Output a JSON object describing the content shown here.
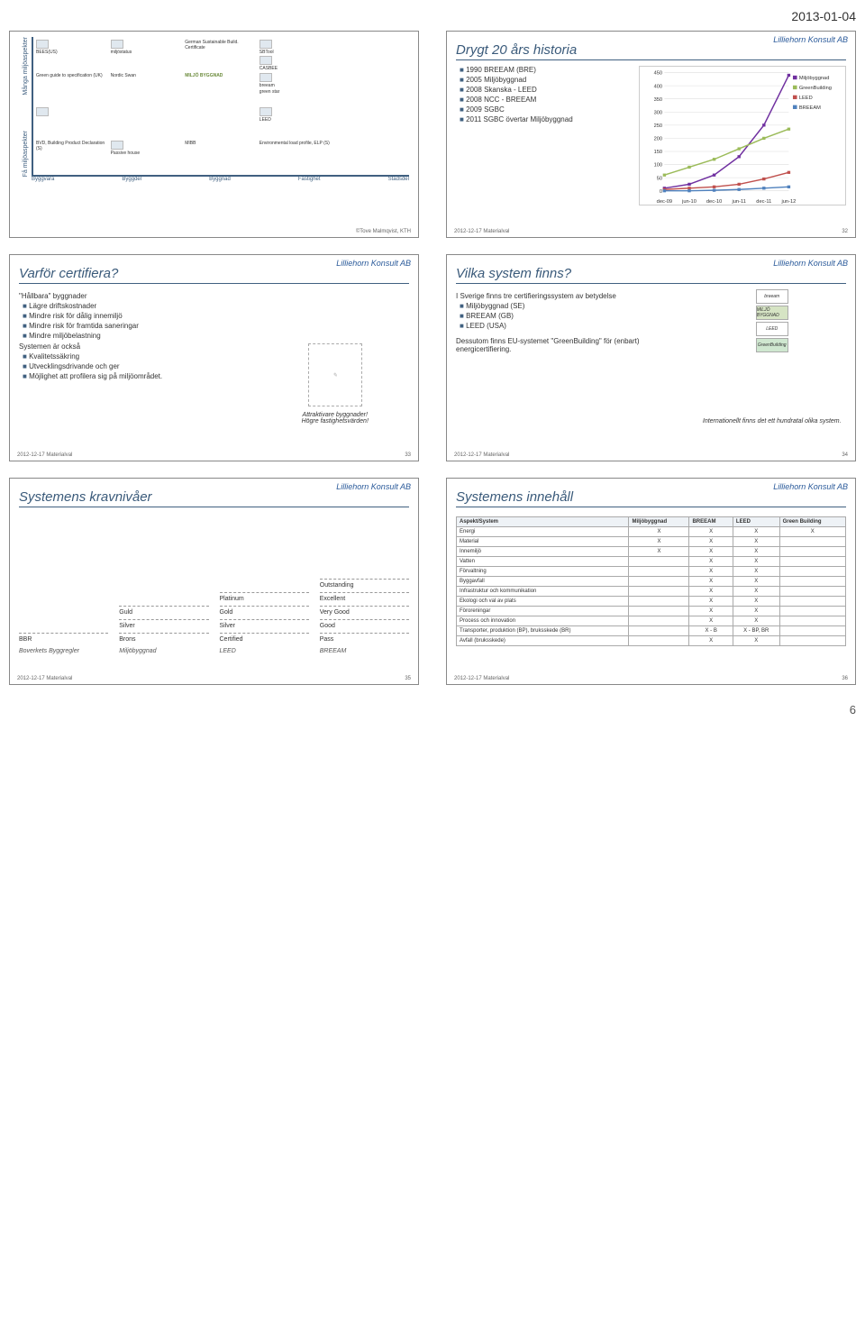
{
  "page": {
    "date": "2013-01-04",
    "number": "6"
  },
  "brand": "Lilliehorn Konsult AB",
  "footer": {
    "left": "2012-12-17  Materialval"
  },
  "slide1": {
    "yaxis_top": "Många miljöaspekter",
    "yaxis_bot": "Få miljöaspekter",
    "xaxis": [
      "Byggvara",
      "Byggdel",
      "Byggnad",
      "Fastighet",
      "Stadsdel"
    ],
    "credit": "©Tove Malmqvist, KTH",
    "items": [
      "BEES(US)",
      "Green guide to specification (UK)",
      "BVD, Building Product Declaration (S)",
      "Nordic Swan",
      "Passive house",
      "MILJÖ BYGGNAD",
      "German Sustainable Build. Certificate",
      "SBTool",
      "LEED",
      "Environmental load profile, ELP (S)",
      "MIBB",
      "miljöstatus",
      "CASBEE",
      "breeam",
      "green star"
    ]
  },
  "slide2": {
    "title": "Drygt 20 års historia",
    "bullets": [
      "1990 BREEAM (BRE)",
      "2005 Miljöbyggnad",
      "2008 Skanska - LEED",
      "2008 NCC - BREEAM",
      "2009 SGBC",
      "2011 SGBC övertar Miljöbyggnad"
    ],
    "chart": {
      "type": "line",
      "xlabels": [
        "dec-09",
        "jun-10",
        "dec-10",
        "jun-11",
        "dec-11",
        "jun-12"
      ],
      "ylim": [
        0,
        450
      ],
      "ytick_step": 50,
      "series": [
        {
          "name": "Miljöbyggnad",
          "color": "#7030a0",
          "values": [
            10,
            25,
            60,
            130,
            250,
            440
          ]
        },
        {
          "name": "GreenBuilding",
          "color": "#9bbb59",
          "values": [
            60,
            90,
            120,
            160,
            200,
            235
          ]
        },
        {
          "name": "LEED",
          "color": "#c0504d",
          "values": [
            5,
            10,
            15,
            25,
            45,
            70
          ]
        },
        {
          "name": "BREEAM",
          "color": "#4f81bd",
          "values": [
            0,
            0,
            2,
            5,
            10,
            15
          ]
        }
      ],
      "grid_color": "#dddddd",
      "background": "#ffffff",
      "font_size": 5
    },
    "footer_no": "32"
  },
  "slide3": {
    "title": "Varför certifiera?",
    "sub1": "\"Hållbara\" byggnader",
    "bullets1": [
      "Lägre driftskostnader",
      "Mindre risk för dålig innemiljö",
      "Mindre risk för framtida saneringar",
      "Mindre miljöbelastning"
    ],
    "sub2": "Systemen är också",
    "bullets2": [
      "Kvalitetssäkring",
      "Utvecklingsdrivande och ger",
      "Möjlighet att profilera sig på miljöområdet."
    ],
    "right1": "Attraktivare byggnader!",
    "right2": "Högre fastighetsvärden!",
    "footer_no": "33"
  },
  "slide4": {
    "title": "Vilka system finns?",
    "sub1": "I Sverige finns tre certifieringssystem av betydelse",
    "bullets1": [
      "Miljöbyggnad (SE)",
      "BREEAM (GB)",
      "LEED (USA)"
    ],
    "para1": "Dessutom finns EU-systemet \"GreenBuilding\" för (enbart) energicertifiering.",
    "right1": "Internationellt finns det ett hundratal olika system.",
    "badges": [
      "breeam",
      "MILJÖ BYGGNAD",
      "LEED",
      "GreenBuilding"
    ],
    "footer_no": "34"
  },
  "slide5": {
    "title": "Systemens kravnivåer",
    "columns": [
      {
        "head": "Boverkets Byggregler",
        "levels": [
          "BBR"
        ]
      },
      {
        "head": "Miljöbyggnad",
        "levels": [
          "Brons",
          "Silver",
          "Guld"
        ]
      },
      {
        "head": "LEED",
        "levels": [
          "Certified",
          "Silver",
          "Gold",
          "Platinum"
        ]
      },
      {
        "head": "BREEAM",
        "levels": [
          "Pass",
          "Good",
          "Very Good",
          "Excellent",
          "Outstanding"
        ]
      }
    ],
    "footer_no": "35"
  },
  "slide6": {
    "title": "Systemens innehåll",
    "headers": [
      "Aspekt/System",
      "Miljöbyggnad",
      "BREEAM",
      "LEED",
      "Green Building"
    ],
    "rows": [
      [
        "Energi",
        "X",
        "X",
        "X",
        "X"
      ],
      [
        "Material",
        "X",
        "X",
        "X",
        ""
      ],
      [
        "Innemiljö",
        "X",
        "X",
        "X",
        ""
      ],
      [
        "Vatten",
        "",
        "X",
        "X",
        ""
      ],
      [
        "Förvaltning",
        "",
        "X",
        "X",
        ""
      ],
      [
        "Byggavfall",
        "",
        "X",
        "X",
        ""
      ],
      [
        "Infrastruktur och kommunikation",
        "",
        "X",
        "X",
        ""
      ],
      [
        "Ekologi och val av plats",
        "",
        "X",
        "X",
        ""
      ],
      [
        "Föroreningar",
        "",
        "X",
        "X",
        ""
      ],
      [
        "Process och innovation",
        "",
        "X",
        "X",
        ""
      ],
      [
        "Transporter, produktion (BP), bruksskede (BR)",
        "",
        "X - B",
        "X - BP, BR",
        ""
      ],
      [
        "Avfall (bruksskede)",
        "",
        "X",
        "X",
        ""
      ]
    ],
    "footer_no": "36"
  }
}
